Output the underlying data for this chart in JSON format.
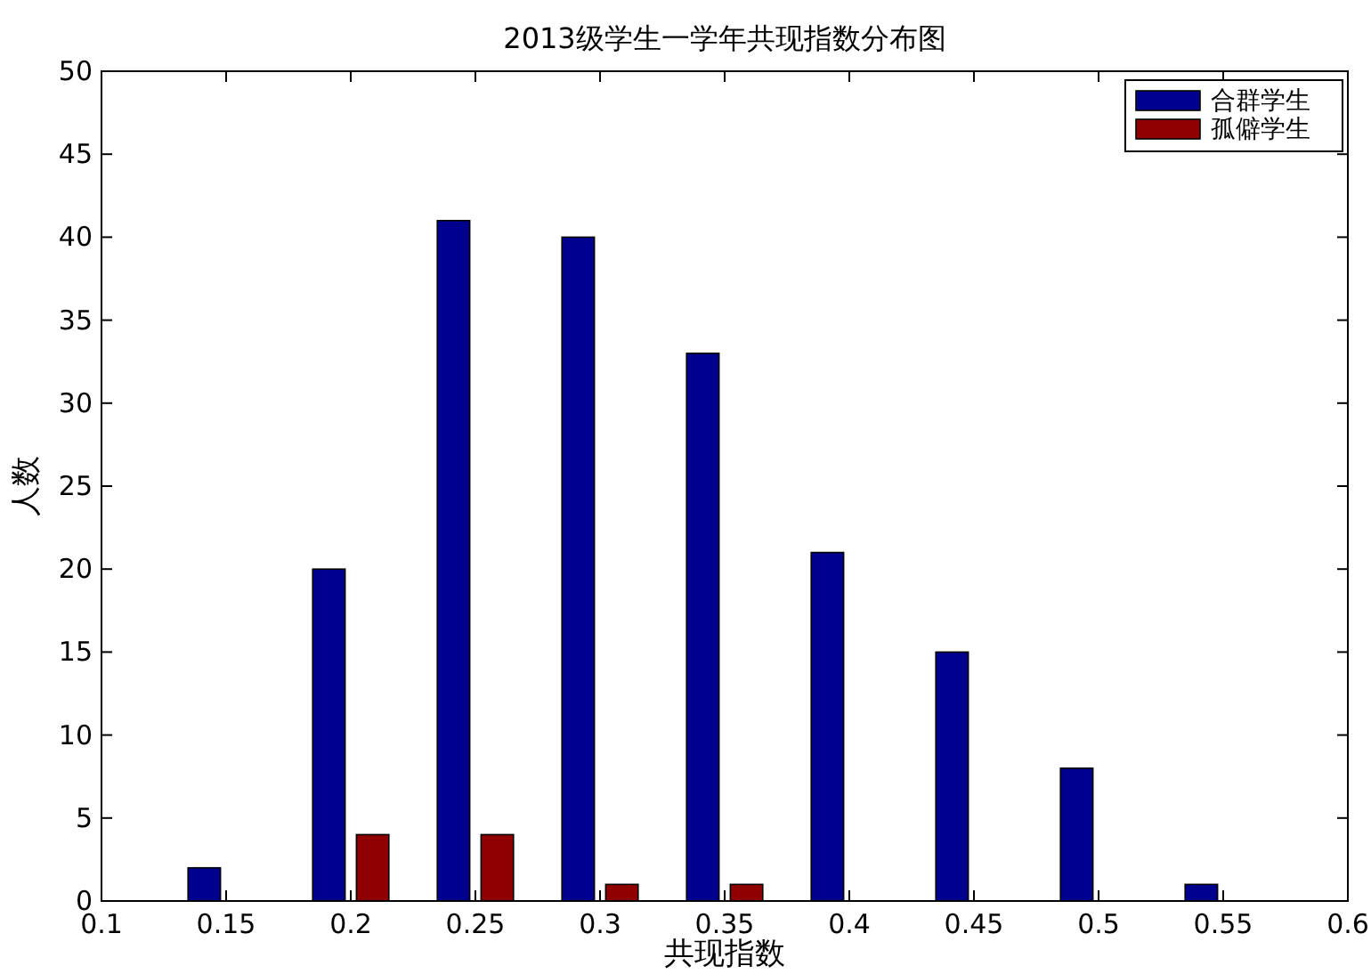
{
  "chart_data": {
    "type": "bar",
    "title": "2013级学生一学年共现指数分布图",
    "xlabel": "共现指数",
    "ylabel": "人数",
    "x": [
      0.15,
      0.2,
      0.25,
      0.3,
      0.35,
      0.4,
      0.45,
      0.5,
      0.55
    ],
    "series": [
      {
        "name": "合群学生",
        "color": "#00008f",
        "values": [
          2,
          20,
          41,
          40,
          33,
          21,
          15,
          8,
          1
        ]
      },
      {
        "name": "孤僻学生",
        "color": "#8f0000",
        "values": [
          0,
          4,
          4,
          1,
          1,
          0,
          0,
          0,
          0
        ]
      }
    ],
    "xlim": [
      0.1,
      0.6
    ],
    "xticks": [
      0.1,
      0.15,
      0.2,
      0.25,
      0.3,
      0.35,
      0.4,
      0.45,
      0.5,
      0.55,
      0.6
    ],
    "ylim": [
      0,
      50
    ],
    "yticks": [
      0,
      5,
      10,
      15,
      20,
      25,
      30,
      35,
      40,
      45,
      50
    ],
    "grid": false,
    "legend": "top right"
  }
}
